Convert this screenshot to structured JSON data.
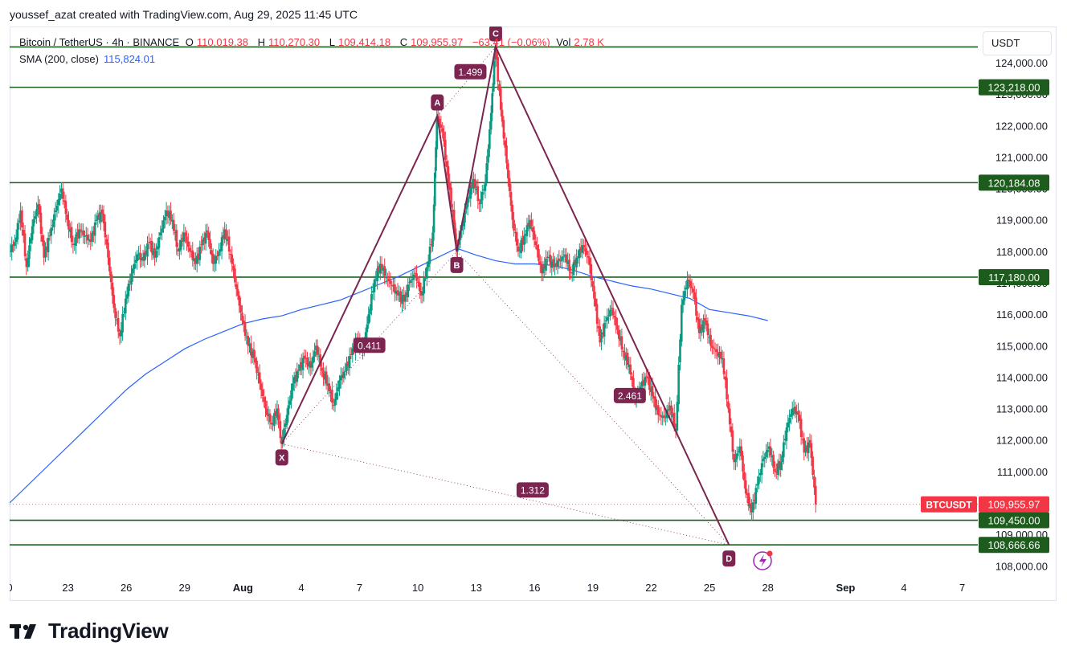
{
  "header": {
    "credit": "youssef_azat created with TradingView.com, Aug 29, 2025 11:45 UTC"
  },
  "legend": {
    "symbol": "Bitcoin / TetherUS · 4h · BINANCE",
    "o_label": "O",
    "o_value": "110,019.38",
    "h_label": "H",
    "h_value": "110,270.30",
    "l_label": "L",
    "l_value": "109,414.18",
    "c_label": "C",
    "c_value": "109,955.97",
    "change": "−63.41 (−0.06%)",
    "vol_label": "Vol",
    "vol_value": "2.78 K",
    "down_color": "#f23645",
    "up_color": "#089981"
  },
  "sma": {
    "label": "SMA (200, close)",
    "value": "115,824.01",
    "color": "#2962ff"
  },
  "currency_button": "USDT",
  "branding": "TradingView",
  "chart_data": {
    "type": "candlestick",
    "timeframe": "4h",
    "y_axis": {
      "ticks": [
        "108,000.00",
        "109,000.00",
        "110,000.00",
        "111,000.00",
        "112,000.00",
        "113,000.00",
        "114,000.00",
        "115,000.00",
        "116,000.00",
        "117,000.00",
        "118,000.00",
        "119,000.00",
        "120,000.00",
        "121,000.00",
        "122,000.00",
        "123,000.00",
        "124,000.00"
      ],
      "range": [
        107650,
        125150
      ]
    },
    "x_axis": {
      "ticks": [
        "0",
        "23",
        "26",
        "29",
        "Aug",
        "4",
        "7",
        "10",
        "13",
        "16",
        "19",
        "22",
        "25",
        "28",
        "Sep",
        "4",
        "7"
      ],
      "range": [
        20,
        69.8
      ],
      "tick_days": [
        20,
        23,
        26,
        29,
        32,
        35,
        38,
        41,
        44,
        47,
        50,
        53,
        56,
        59,
        63,
        66,
        69
      ],
      "bold_ticks": [
        "Aug",
        "Sep"
      ]
    },
    "horizontal_levels": [
      {
        "price": 124500,
        "label": ""
      },
      {
        "price": 123218,
        "label": "123,218.00"
      },
      {
        "price": 120184.08,
        "label": "120,184.08"
      },
      {
        "price": 117180,
        "label": "117,180.00"
      },
      {
        "price": 109450,
        "label": "109,450.00"
      },
      {
        "price": 108666.66,
        "label": "108,666.66"
      }
    ],
    "level_color": "#1e5c1e",
    "current_price": {
      "symbol": "BTCUSDT",
      "label": "109,955.97",
      "price": 109955.97,
      "color": "#f23645"
    },
    "harmonic_pattern": {
      "points": [
        {
          "name": "X",
          "day": 34.0,
          "price": 111880
        },
        {
          "name": "A",
          "day": 42.0,
          "price": 122300
        },
        {
          "name": "B",
          "day": 43.0,
          "price": 118000
        },
        {
          "name": "C",
          "day": 45.0,
          "price": 124500
        },
        {
          "name": "D",
          "day": 57.0,
          "price": 108666.66
        }
      ],
      "ratios": [
        {
          "label": "0.411",
          "day": 38.5,
          "price": 115000
        },
        {
          "label": "1.499",
          "day": 43.7,
          "price": 123700
        },
        {
          "label": "2.461",
          "day": 51.9,
          "price": 113400
        },
        {
          "label": "1.312",
          "day": 46.9,
          "price": 110400
        }
      ],
      "line_color": "#7b2550"
    },
    "sma_path": [
      [
        20,
        110000
      ],
      [
        21,
        110600
      ],
      [
        22,
        111200
      ],
      [
        23,
        111800
      ],
      [
        24,
        112400
      ],
      [
        25,
        113000
      ],
      [
        26,
        113600
      ],
      [
        27,
        114100
      ],
      [
        28,
        114500
      ],
      [
        29,
        114900
      ],
      [
        30,
        115200
      ],
      [
        31,
        115450
      ],
      [
        32,
        115700
      ],
      [
        33,
        115850
      ],
      [
        34,
        115950
      ],
      [
        35,
        116150
      ],
      [
        36,
        116300
      ],
      [
        37,
        116450
      ],
      [
        38,
        116700
      ],
      [
        39,
        116950
      ],
      [
        40,
        117200
      ],
      [
        41,
        117500
      ],
      [
        42,
        117800
      ],
      [
        43,
        118100
      ],
      [
        44,
        117880
      ],
      [
        45,
        117700
      ],
      [
        46,
        117600
      ],
      [
        47,
        117600
      ],
      [
        48,
        117550
      ],
      [
        49,
        117400
      ],
      [
        50,
        117200
      ],
      [
        51,
        117050
      ],
      [
        52,
        116900
      ],
      [
        53,
        116800
      ],
      [
        54,
        116650
      ],
      [
        55,
        116500
      ],
      [
        56,
        116150
      ],
      [
        57,
        116050
      ],
      [
        58,
        115950
      ],
      [
        59,
        115800
      ]
    ],
    "price_path": [
      [
        20.0,
        118000
      ],
      [
        20.3,
        118300
      ],
      [
        20.6,
        119300
      ],
      [
        20.9,
        117500
      ],
      [
        21.2,
        118800
      ],
      [
        21.5,
        119500
      ],
      [
        21.8,
        117800
      ],
      [
        22.1,
        118500
      ],
      [
        22.4,
        119300
      ],
      [
        22.7,
        120000
      ],
      [
        23.0,
        119000
      ],
      [
        23.3,
        118200
      ],
      [
        23.6,
        118700
      ],
      [
        23.9,
        118500
      ],
      [
        24.2,
        118300
      ],
      [
        24.5,
        119000
      ],
      [
        24.8,
        119200
      ],
      [
        25.1,
        117800
      ],
      [
        25.4,
        116200
      ],
      [
        25.7,
        115300
      ],
      [
        26.0,
        116500
      ],
      [
        26.3,
        117300
      ],
      [
        26.6,
        117900
      ],
      [
        26.9,
        117700
      ],
      [
        27.2,
        118300
      ],
      [
        27.5,
        117800
      ],
      [
        27.8,
        118600
      ],
      [
        28.1,
        119300
      ],
      [
        28.4,
        119000
      ],
      [
        28.7,
        118000
      ],
      [
        29.0,
        118600
      ],
      [
        29.3,
        118000
      ],
      [
        29.6,
        117600
      ],
      [
        29.9,
        118200
      ],
      [
        30.2,
        118600
      ],
      [
        30.5,
        117600
      ],
      [
        30.8,
        118000
      ],
      [
        31.1,
        118700
      ],
      [
        31.4,
        117900
      ],
      [
        31.7,
        116800
      ],
      [
        32.0,
        115800
      ],
      [
        32.3,
        115000
      ],
      [
        32.6,
        114600
      ],
      [
        32.9,
        113800
      ],
      [
        33.2,
        113000
      ],
      [
        33.5,
        112500
      ],
      [
        33.8,
        113000
      ],
      [
        34.0,
        111880
      ],
      [
        34.3,
        112800
      ],
      [
        34.6,
        113800
      ],
      [
        34.9,
        114200
      ],
      [
        35.2,
        114600
      ],
      [
        35.5,
        114300
      ],
      [
        35.8,
        115000
      ],
      [
        36.1,
        114200
      ],
      [
        36.4,
        113800
      ],
      [
        36.7,
        113100
      ],
      [
        37.0,
        113900
      ],
      [
        37.3,
        114200
      ],
      [
        37.6,
        114700
      ],
      [
        37.9,
        115200
      ],
      [
        38.2,
        114800
      ],
      [
        38.5,
        116000
      ],
      [
        38.8,
        117100
      ],
      [
        39.1,
        117600
      ],
      [
        39.4,
        117200
      ],
      [
        39.7,
        116900
      ],
      [
        40.0,
        116600
      ],
      [
        40.3,
        116400
      ],
      [
        40.6,
        117000
      ],
      [
        40.9,
        117300
      ],
      [
        41.2,
        116600
      ],
      [
        41.5,
        117500
      ],
      [
        41.8,
        118600
      ],
      [
        42.0,
        122300
      ],
      [
        42.3,
        121800
      ],
      [
        42.6,
        120200
      ],
      [
        42.9,
        118800
      ],
      [
        43.0,
        118000
      ],
      [
        43.3,
        118800
      ],
      [
        43.6,
        119700
      ],
      [
        43.9,
        120300
      ],
      [
        44.2,
        119500
      ],
      [
        44.5,
        120200
      ],
      [
        44.8,
        122400
      ],
      [
        45.0,
        124500
      ],
      [
        45.3,
        122500
      ],
      [
        45.6,
        120800
      ],
      [
        45.9,
        119000
      ],
      [
        46.2,
        118000
      ],
      [
        46.5,
        118500
      ],
      [
        46.8,
        119000
      ],
      [
        47.1,
        118200
      ],
      [
        47.4,
        117300
      ],
      [
        47.7,
        117800
      ],
      [
        48.0,
        117500
      ],
      [
        48.3,
        117700
      ],
      [
        48.6,
        117900
      ],
      [
        48.9,
        117300
      ],
      [
        49.2,
        117800
      ],
      [
        49.5,
        118200
      ],
      [
        49.8,
        117800
      ],
      [
        50.1,
        116500
      ],
      [
        50.4,
        115100
      ],
      [
        50.7,
        115800
      ],
      [
        51.0,
        116200
      ],
      [
        51.3,
        115500
      ],
      [
        51.6,
        114800
      ],
      [
        51.9,
        114400
      ],
      [
        52.2,
        113300
      ],
      [
        52.5,
        113700
      ],
      [
        52.8,
        114000
      ],
      [
        53.1,
        113400
      ],
      [
        53.4,
        112800
      ],
      [
        53.7,
        112700
      ],
      [
        54.0,
        113100
      ],
      [
        54.3,
        112300
      ],
      [
        54.6,
        116300
      ],
      [
        54.9,
        117100
      ],
      [
        55.2,
        116700
      ],
      [
        55.5,
        115400
      ],
      [
        55.8,
        115800
      ],
      [
        56.1,
        115000
      ],
      [
        56.4,
        114800
      ],
      [
        56.7,
        114600
      ],
      [
        57.0,
        113000
      ],
      [
        57.3,
        111300
      ],
      [
        57.6,
        111800
      ],
      [
        57.9,
        110300
      ],
      [
        58.2,
        109700
      ],
      [
        58.5,
        110600
      ],
      [
        58.8,
        111400
      ],
      [
        59.1,
        111800
      ],
      [
        59.4,
        111000
      ],
      [
        59.7,
        111300
      ],
      [
        60.0,
        112400
      ],
      [
        60.3,
        113000
      ],
      [
        60.6,
        112800
      ],
      [
        60.9,
        111600
      ],
      [
        61.2,
        111900
      ],
      [
        61.5,
        109955.97
      ]
    ]
  }
}
